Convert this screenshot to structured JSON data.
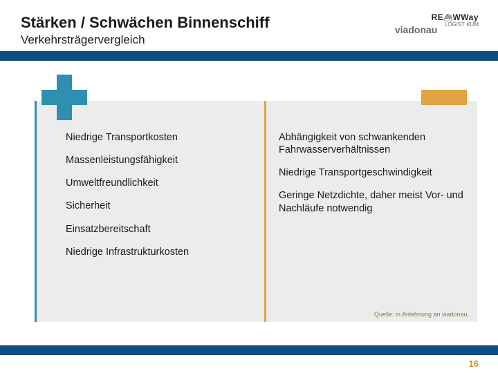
{
  "header": {
    "title": "Stärken / Schwächen Binnenschiff",
    "subtitle": "Verkehrsträgervergleich",
    "logo_newway_left": "RE",
    "logo_newway_right": "WWay",
    "logo_viadonau": "viadonau",
    "logo_logist": "LOGIST KUM"
  },
  "strengths": {
    "items": [
      "Niedrige Transportkosten",
      "Massenleistungsfähigkeit",
      "Umweltfreundlichkeit",
      "Sicherheit",
      "Einsatzbereitschaft",
      "Niedrige Infrastrukturkosten"
    ]
  },
  "weaknesses": {
    "items": [
      "Abhängigkeit von schwankenden Fahrwasserverhältnissen",
      "Niedrige Transportgeschwindigkeit",
      "Geringe Netzdichte, daher meist Vor- und Nachläufe notwendig"
    ]
  },
  "source": "Quelle: in Anlehnung an viadonau.",
  "page": "16",
  "colors": {
    "plus": "#2e8fb0",
    "minus": "#e0a442",
    "bar": "#0f4c81",
    "panel": "#ececec",
    "pagenum": "#d08c1e"
  }
}
